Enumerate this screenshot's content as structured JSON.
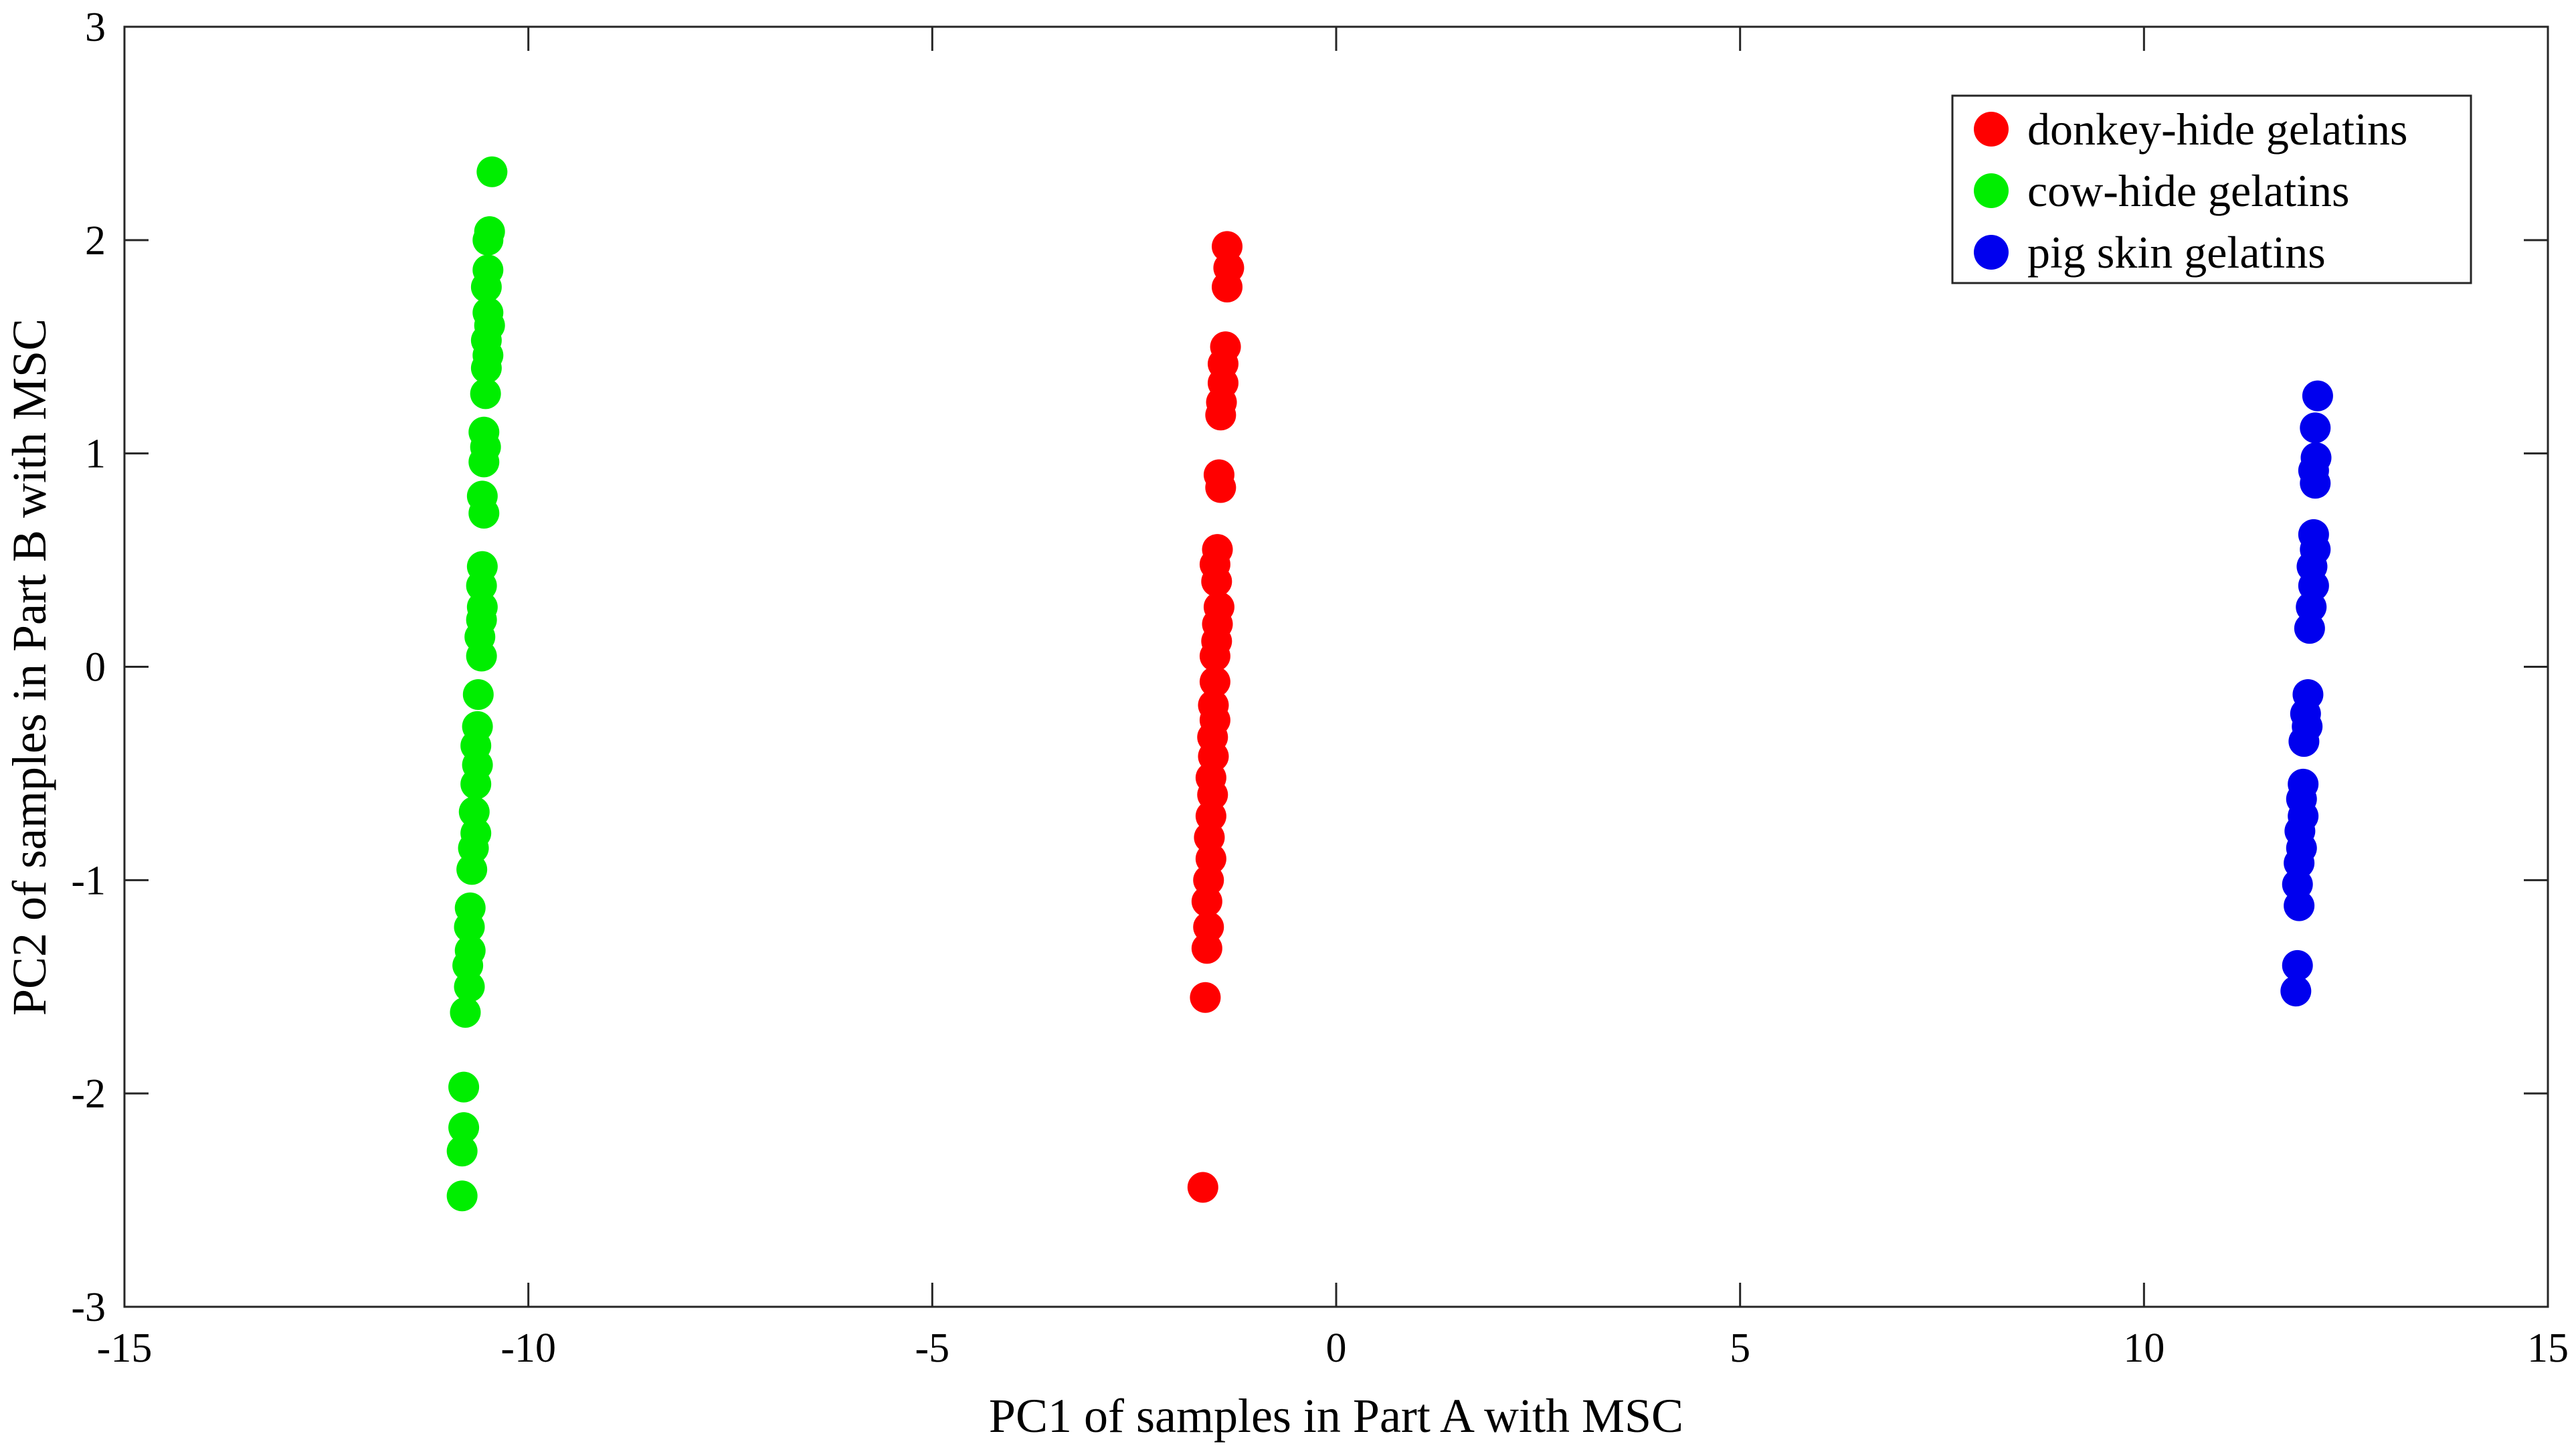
{
  "chart_data": {
    "type": "scatter",
    "xlabel": "PC1 of samples in Part A with MSC",
    "ylabel": "PC2 of samples in Part B with MSC",
    "xlim": [
      -15,
      15
    ],
    "ylim": [
      -3,
      3
    ],
    "xticks": [
      "-15",
      "-10",
      "-5",
      "0",
      "5",
      "10",
      "15"
    ],
    "yticks": [
      "-3",
      "-2",
      "-1",
      "0",
      "1",
      "2",
      "3"
    ],
    "grid": false,
    "legend_position": "top-right",
    "series": [
      {
        "name": "donkey-hide gelatins",
        "color": "#ff0000",
        "points": [
          [
            -1.35,
            1.97
          ],
          [
            -1.33,
            1.87
          ],
          [
            -1.35,
            1.78
          ],
          [
            -1.37,
            1.5
          ],
          [
            -1.4,
            1.42
          ],
          [
            -1.4,
            1.33
          ],
          [
            -1.42,
            1.24
          ],
          [
            -1.43,
            1.18
          ],
          [
            -1.45,
            0.9
          ],
          [
            -1.43,
            0.84
          ],
          [
            -1.47,
            0.55
          ],
          [
            -1.5,
            0.48
          ],
          [
            -1.48,
            0.4
          ],
          [
            -1.45,
            0.28
          ],
          [
            -1.47,
            0.2
          ],
          [
            -1.48,
            0.12
          ],
          [
            -1.5,
            0.05
          ],
          [
            -1.5,
            -0.07
          ],
          [
            -1.52,
            -0.18
          ],
          [
            -1.5,
            -0.25
          ],
          [
            -1.53,
            -0.33
          ],
          [
            -1.52,
            -0.42
          ],
          [
            -1.55,
            -0.52
          ],
          [
            -1.53,
            -0.6
          ],
          [
            -1.55,
            -0.7
          ],
          [
            -1.57,
            -0.8
          ],
          [
            -1.55,
            -0.9
          ],
          [
            -1.58,
            -1.0
          ],
          [
            -1.6,
            -1.1
          ],
          [
            -1.58,
            -1.22
          ],
          [
            -1.6,
            -1.32
          ],
          [
            -1.62,
            -1.55
          ],
          [
            -1.65,
            -2.44
          ]
        ]
      },
      {
        "name": "cow-hide gelatins",
        "color": "#00ee00",
        "points": [
          [
            -10.45,
            2.32
          ],
          [
            -10.48,
            2.04
          ],
          [
            -10.5,
            2.0
          ],
          [
            -10.5,
            1.86
          ],
          [
            -10.52,
            1.78
          ],
          [
            -10.5,
            1.66
          ],
          [
            -10.48,
            1.6
          ],
          [
            -10.52,
            1.53
          ],
          [
            -10.5,
            1.46
          ],
          [
            -10.52,
            1.4
          ],
          [
            -10.53,
            1.28
          ],
          [
            -10.55,
            1.1
          ],
          [
            -10.53,
            1.03
          ],
          [
            -10.55,
            0.96
          ],
          [
            -10.57,
            0.8
          ],
          [
            -10.55,
            0.72
          ],
          [
            -10.57,
            0.47
          ],
          [
            -10.58,
            0.38
          ],
          [
            -10.57,
            0.28
          ],
          [
            -10.58,
            0.22
          ],
          [
            -10.6,
            0.14
          ],
          [
            -10.58,
            0.05
          ],
          [
            -10.62,
            -0.13
          ],
          [
            -10.63,
            -0.28
          ],
          [
            -10.65,
            -0.37
          ],
          [
            -10.63,
            -0.46
          ],
          [
            -10.65,
            -0.55
          ],
          [
            -10.67,
            -0.68
          ],
          [
            -10.65,
            -0.78
          ],
          [
            -10.68,
            -0.85
          ],
          [
            -10.7,
            -0.95
          ],
          [
            -10.72,
            -1.13
          ],
          [
            -10.73,
            -1.22
          ],
          [
            -10.72,
            -1.33
          ],
          [
            -10.75,
            -1.4
          ],
          [
            -10.73,
            -1.5
          ],
          [
            -10.78,
            -1.62
          ],
          [
            -10.8,
            -1.97
          ],
          [
            -10.8,
            -2.16
          ],
          [
            -10.82,
            -2.27
          ],
          [
            -10.82,
            -2.48
          ]
        ]
      },
      {
        "name": "pig skin gelatins",
        "color": "#0000ee",
        "points": [
          [
            12.15,
            1.27
          ],
          [
            12.12,
            1.12
          ],
          [
            12.13,
            0.98
          ],
          [
            12.1,
            0.92
          ],
          [
            12.12,
            0.86
          ],
          [
            12.1,
            0.62
          ],
          [
            12.12,
            0.55
          ],
          [
            12.08,
            0.47
          ],
          [
            12.1,
            0.38
          ],
          [
            12.07,
            0.28
          ],
          [
            12.05,
            0.18
          ],
          [
            12.03,
            -0.13
          ],
          [
            12.0,
            -0.22
          ],
          [
            12.02,
            -0.28
          ],
          [
            11.98,
            -0.35
          ],
          [
            11.97,
            -0.55
          ],
          [
            11.95,
            -0.62
          ],
          [
            11.97,
            -0.7
          ],
          [
            11.93,
            -0.77
          ],
          [
            11.95,
            -0.85
          ],
          [
            11.92,
            -0.92
          ],
          [
            11.9,
            -1.02
          ],
          [
            11.92,
            -1.12
          ],
          [
            11.9,
            -1.4
          ],
          [
            11.88,
            -1.52
          ]
        ]
      }
    ]
  }
}
